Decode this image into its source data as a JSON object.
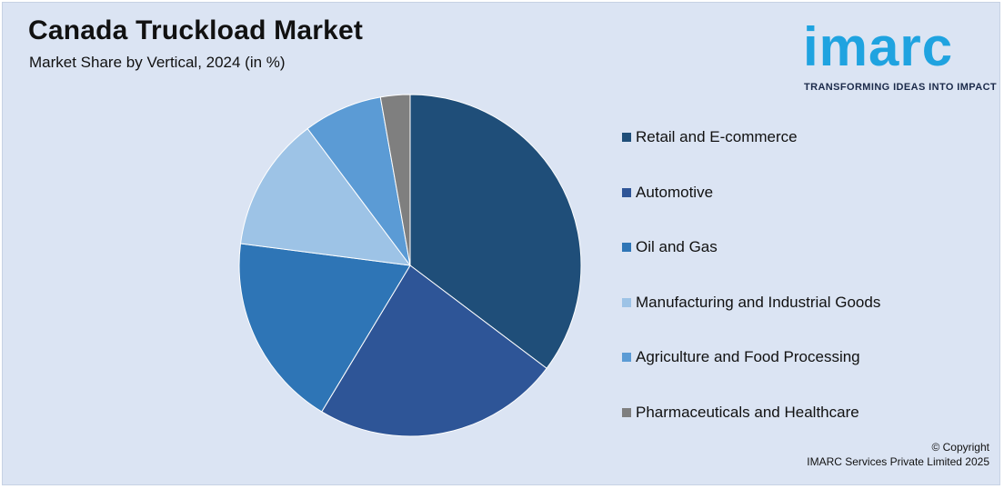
{
  "header": {
    "title": "Canada Truckload Market",
    "subtitle": "Market Share by Vertical, 2024 (in %)"
  },
  "logo": {
    "word": "imarc",
    "tagline": "TRANSFORMING IDEAS INTO IMPACT",
    "color": "#1fa3e0"
  },
  "footer": {
    "copyright_line1": "© Copyright",
    "copyright_line2": "IMARC Services Private Limited 2025"
  },
  "chart_data": {
    "type": "pie",
    "title": "Canada Truckload Market",
    "subtitle": "Market Share by Vertical, 2024 (in %)",
    "legend_position": "right",
    "categories": [
      "Retail and E-commerce",
      "Automotive",
      "Oil and Gas",
      "Manufacturing and Industrial Goods",
      "Agriculture and Food Processing",
      "Pharmaceuticals and Healthcare"
    ],
    "values": [
      35.5,
      23.5,
      18.5,
      12.8,
      7.5,
      2.8
    ],
    "colors": [
      "#1f4e79",
      "#2e5597",
      "#2e75b6",
      "#9dc3e6",
      "#5b9bd5",
      "#7f7f7f"
    ]
  }
}
